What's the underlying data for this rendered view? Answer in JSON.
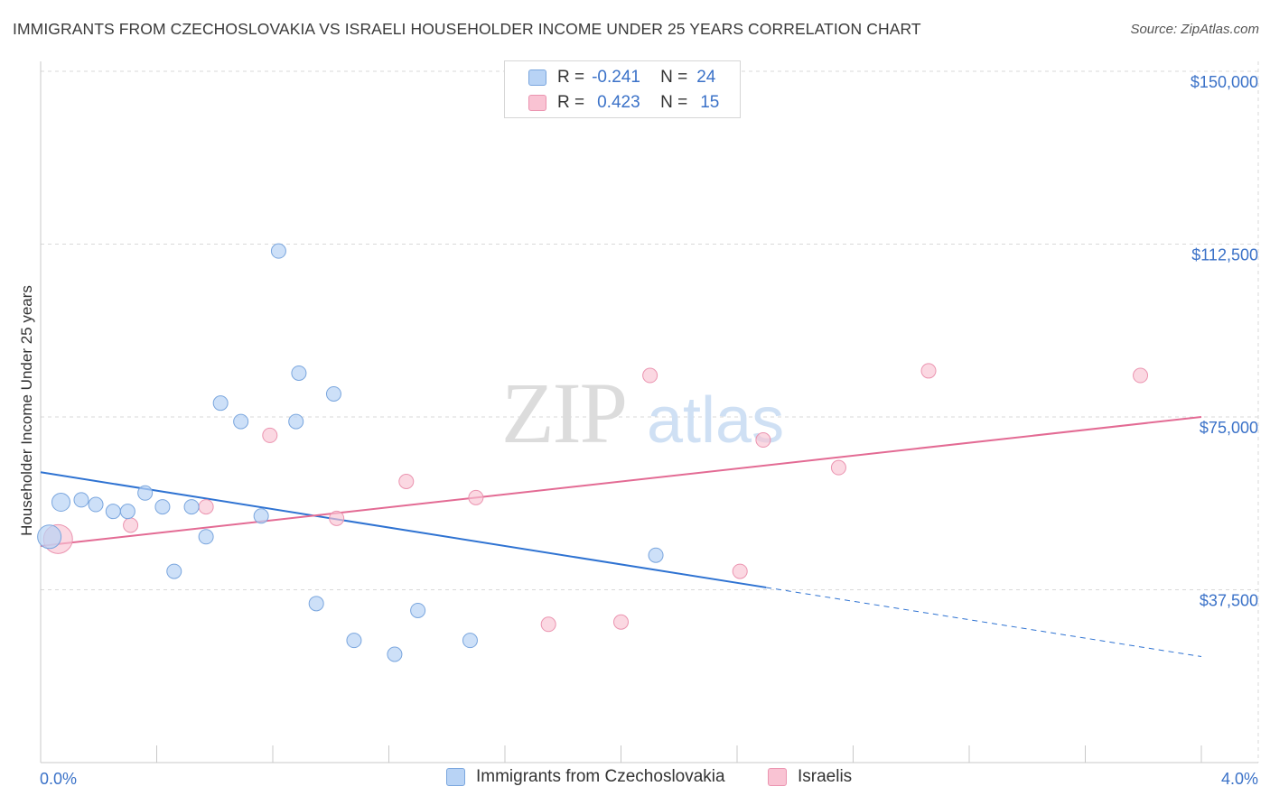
{
  "header": {
    "title": "IMMIGRANTS FROM CZECHOSLOVAKIA VS ISRAELI HOUSEHOLDER INCOME UNDER 25 YEARS CORRELATION CHART",
    "source": "Source: ZipAtlas.com"
  },
  "watermark": {
    "zip": "ZIP",
    "atlas": "atlas"
  },
  "legend": {
    "rows": [
      {
        "r_label": "R =",
        "r_value": "-0.241",
        "n_label": "N =",
        "n_value": "24"
      },
      {
        "r_label": "R =",
        "r_value": "0.423",
        "n_label": "N =",
        "n_value": "15"
      }
    ]
  },
  "bottom_legend": {
    "items": [
      {
        "label": "Immigrants from Czechoslovakia"
      },
      {
        "label": "Israelis"
      }
    ]
  },
  "colors": {
    "blue_fill": "#b8d3f5",
    "blue_stroke": "#7aa6de",
    "blue_line": "#2f73d2",
    "pink_fill": "#f9c3d3",
    "pink_stroke": "#eb94b0",
    "pink_line": "#e36b94",
    "tick_text": "#3b72c8",
    "grid": "#d9d9d9"
  },
  "chart_data": {
    "type": "scatter",
    "title": "IMMIGRANTS FROM CZECHOSLOVAKIA VS ISRAELI HOUSEHOLDER INCOME UNDER 25 YEARS CORRELATION CHART",
    "xlabel": "",
    "ylabel": "Householder Income Under 25 years",
    "xlim": [
      0,
      4.0
    ],
    "ylim": [
      0,
      152000
    ],
    "x_tick_labels": [
      "0.0%",
      "4.0%"
    ],
    "y_ticks": [
      37500,
      75000,
      112500,
      150000
    ],
    "y_tick_labels": [
      "$37,500",
      "$75,000",
      "$112,500",
      "$150,000"
    ],
    "grid": true,
    "legend_position": "top-center",
    "series": [
      {
        "name": "Immigrants from Czechoslovakia",
        "color": "#b8d3f5",
        "points": [
          [
            0.03,
            49000
          ],
          [
            0.07,
            56500
          ],
          [
            0.14,
            57000
          ],
          [
            0.19,
            56000
          ],
          [
            0.25,
            54500
          ],
          [
            0.3,
            54500
          ],
          [
            0.36,
            58500
          ],
          [
            0.42,
            55500
          ],
          [
            0.46,
            41500
          ],
          [
            0.52,
            55500
          ],
          [
            0.57,
            49000
          ],
          [
            0.62,
            78000
          ],
          [
            0.69,
            74000
          ],
          [
            0.76,
            53500
          ],
          [
            0.82,
            111000
          ],
          [
            0.88,
            74000
          ],
          [
            0.89,
            84500
          ],
          [
            0.95,
            34500
          ],
          [
            1.01,
            80000
          ],
          [
            1.08,
            26500
          ],
          [
            1.22,
            23500
          ],
          [
            1.3,
            33000
          ],
          [
            1.48,
            26500
          ],
          [
            2.12,
            45000
          ]
        ],
        "sizes": [
          3,
          2,
          1,
          1,
          1,
          1,
          1,
          1,
          1,
          1,
          1,
          1,
          1,
          1,
          1,
          1,
          1,
          1,
          1,
          1,
          1,
          1,
          1,
          1
        ],
        "trend": {
          "x": [
            0,
            2.5
          ],
          "y": [
            63000,
            38000
          ],
          "dashed_to": [
            4.0,
            23000
          ]
        }
      },
      {
        "name": "Israelis",
        "color": "#f9c3d3",
        "points": [
          [
            0.06,
            48500
          ],
          [
            0.31,
            51500
          ],
          [
            0.57,
            55500
          ],
          [
            0.79,
            71000
          ],
          [
            1.02,
            53000
          ],
          [
            1.26,
            61000
          ],
          [
            1.5,
            57500
          ],
          [
            1.75,
            30000
          ],
          [
            2.0,
            30500
          ],
          [
            2.1,
            84000
          ],
          [
            2.41,
            41500
          ],
          [
            2.49,
            70000
          ],
          [
            2.75,
            64000
          ],
          [
            3.06,
            85000
          ],
          [
            3.79,
            84000
          ]
        ],
        "sizes": [
          4,
          1,
          1,
          1,
          1,
          1,
          1,
          1,
          1,
          1,
          1,
          1,
          1,
          1,
          1
        ],
        "trend": {
          "x": [
            0,
            4.0
          ],
          "y": [
            47000,
            75000
          ]
        }
      }
    ]
  }
}
